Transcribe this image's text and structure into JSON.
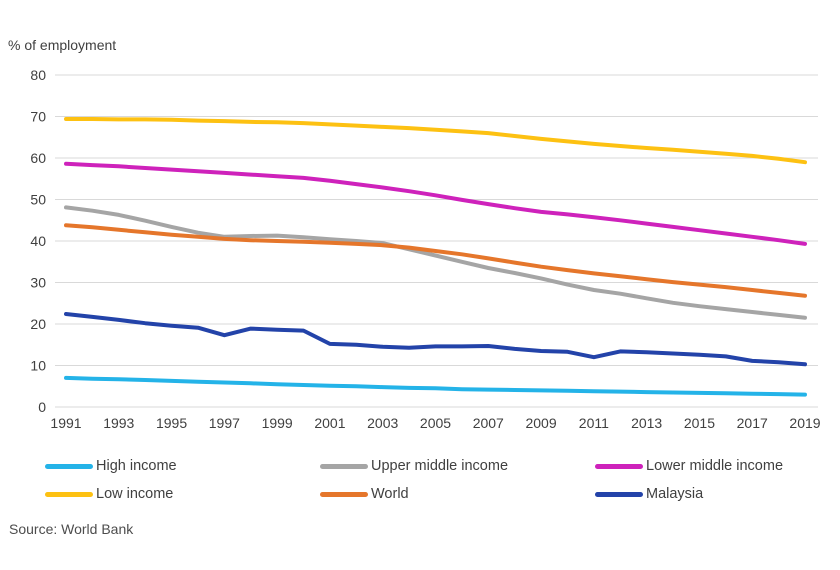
{
  "header": {
    "axis_title": "% of employment"
  },
  "source_note": "Source: World Bank",
  "chart_data": {
    "type": "line",
    "title": "",
    "ylabel": "% of employment",
    "xlabel": "",
    "ylim": [
      0,
      80
    ],
    "ytick_step": 10,
    "ytick_labels": [
      "0",
      "10",
      "20",
      "30",
      "40",
      "50",
      "60",
      "70",
      "80"
    ],
    "grid": true,
    "gridline_color": "#d9d9d9",
    "axis_text_color": "#404040",
    "legend_position": "bottom",
    "x": [
      1991,
      1992,
      1993,
      1994,
      1995,
      1996,
      1997,
      1998,
      1999,
      2000,
      2001,
      2002,
      2003,
      2004,
      2005,
      2006,
      2007,
      2008,
      2009,
      2010,
      2011,
      2012,
      2013,
      2014,
      2015,
      2016,
      2017,
      2018,
      2019
    ],
    "xtick_labels": [
      "1991",
      "1993",
      "1995",
      "1997",
      "1999",
      "2001",
      "2003",
      "2005",
      "2007",
      "2009",
      "2011",
      "2013",
      "2015",
      "2017",
      "2019"
    ],
    "series": [
      {
        "name": "High income",
        "color": "#24b3e8",
        "values": [
          7.0,
          6.8,
          6.7,
          6.5,
          6.3,
          6.1,
          5.9,
          5.7,
          5.5,
          5.3,
          5.1,
          5.0,
          4.8,
          4.6,
          4.5,
          4.3,
          4.2,
          4.1,
          4.0,
          3.9,
          3.8,
          3.7,
          3.6,
          3.5,
          3.4,
          3.3,
          3.2,
          3.1,
          3.0
        ]
      },
      {
        "name": "Upper middle income",
        "color": "#a5a5a5",
        "values": [
          48.1,
          47.3,
          46.3,
          44.9,
          43.4,
          42.0,
          41.0,
          41.2,
          41.3,
          40.9,
          40.4,
          40.0,
          39.5,
          38.0,
          36.5,
          35.0,
          33.5,
          32.3,
          31.0,
          29.5,
          28.2,
          27.3,
          26.2,
          25.1,
          24.3,
          23.6,
          22.9,
          22.2,
          21.5
        ]
      },
      {
        "name": "Lower middle income",
        "color": "#ce22bb",
        "values": [
          58.6,
          58.3,
          58.0,
          57.6,
          57.2,
          56.8,
          56.4,
          56.0,
          55.6,
          55.2,
          54.5,
          53.7,
          52.9,
          52.0,
          51.0,
          49.9,
          48.9,
          47.9,
          47.0,
          46.4,
          45.7,
          45.0,
          44.2,
          43.4,
          42.6,
          41.8,
          41.0,
          40.2,
          39.3
        ]
      },
      {
        "name": "Low income",
        "color": "#fdc112",
        "values": [
          69.4,
          69.4,
          69.3,
          69.3,
          69.2,
          69.0,
          68.9,
          68.7,
          68.6,
          68.4,
          68.1,
          67.8,
          67.5,
          67.2,
          66.8,
          66.4,
          66.0,
          65.3,
          64.6,
          64.0,
          63.4,
          62.9,
          62.4,
          62.0,
          61.5,
          61.0,
          60.5,
          59.8,
          59.0
        ]
      },
      {
        "name": "World",
        "color": "#e5762b",
        "values": [
          43.8,
          43.3,
          42.7,
          42.1,
          41.5,
          41.0,
          40.5,
          40.2,
          40.0,
          39.8,
          39.6,
          39.3,
          39.0,
          38.4,
          37.6,
          36.8,
          35.8,
          34.8,
          33.8,
          33.0,
          32.2,
          31.5,
          30.8,
          30.1,
          29.5,
          28.9,
          28.2,
          27.5,
          26.8
        ]
      },
      {
        "name": "Malaysia",
        "color": "#2343a9",
        "values": [
          22.4,
          21.7,
          21.0,
          20.2,
          19.6,
          19.1,
          17.3,
          18.9,
          18.6,
          18.4,
          15.2,
          15.0,
          14.5,
          14.3,
          14.6,
          14.6,
          14.7,
          14.0,
          13.5,
          13.3,
          12.0,
          13.4,
          13.2,
          12.9,
          12.6,
          12.2,
          11.1,
          10.8,
          10.3
        ]
      }
    ]
  }
}
